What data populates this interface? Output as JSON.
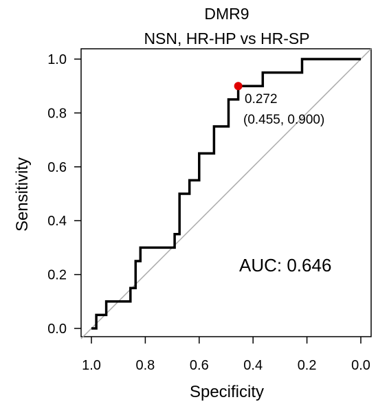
{
  "chart_data": {
    "type": "line",
    "title": "DMR9",
    "subtitle": "NSN, HR-HP vs HR-SP",
    "xlabel": "Specificity",
    "ylabel": "Sensitivity",
    "xlim": [
      1.0,
      0.0
    ],
    "ylim": [
      0.0,
      1.0
    ],
    "xaxis_reversed": true,
    "xticks": [
      "1.0",
      "0.8",
      "0.6",
      "0.4",
      "0.2",
      "0.0"
    ],
    "yticks": [
      "0.0",
      "0.2",
      "0.4",
      "0.6",
      "0.8",
      "1.0"
    ],
    "grid": false,
    "series": [
      {
        "color": "#000000",
        "points": [
          [
            1.0,
            0.0
          ],
          [
            0.982,
            0.0
          ],
          [
            0.982,
            0.05
          ],
          [
            0.945,
            0.05
          ],
          [
            0.945,
            0.1
          ],
          [
            0.855,
            0.1
          ],
          [
            0.855,
            0.15
          ],
          [
            0.836,
            0.15
          ],
          [
            0.836,
            0.25
          ],
          [
            0.818,
            0.25
          ],
          [
            0.818,
            0.3
          ],
          [
            0.691,
            0.3
          ],
          [
            0.691,
            0.35
          ],
          [
            0.673,
            0.35
          ],
          [
            0.673,
            0.5
          ],
          [
            0.636,
            0.5
          ],
          [
            0.636,
            0.55
          ],
          [
            0.6,
            0.55
          ],
          [
            0.6,
            0.65
          ],
          [
            0.545,
            0.65
          ],
          [
            0.545,
            0.75
          ],
          [
            0.491,
            0.75
          ],
          [
            0.491,
            0.85
          ],
          [
            0.455,
            0.85
          ],
          [
            0.455,
            0.9
          ],
          [
            0.364,
            0.9
          ],
          [
            0.364,
            0.95
          ],
          [
            0.218,
            0.95
          ],
          [
            0.218,
            1.0
          ],
          [
            0.0,
            1.0
          ]
        ]
      }
    ],
    "reference_line": {
      "from": [
        1.0,
        0.0
      ],
      "to": [
        0.0,
        1.0
      ],
      "color": "#aaaaaa"
    },
    "highlight_point": {
      "x": 0.455,
      "y": 0.9,
      "color": "#e00000",
      "label_threshold": "0.272",
      "label_coords": "(0.455, 0.900)"
    },
    "auc_label": "AUC: 0.646"
  }
}
